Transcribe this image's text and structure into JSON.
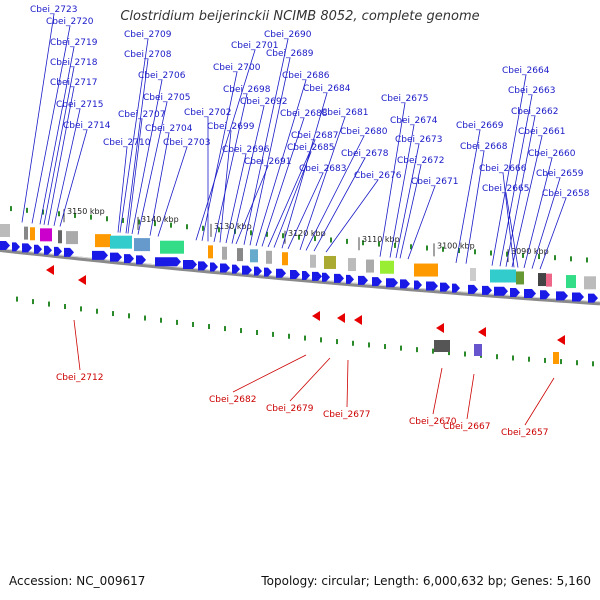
{
  "title": "Clostridium beijerinckii NCIMB 8052, complete genome",
  "footer": {
    "accession": "Accession: NC_009617",
    "topology": "Topology: circular; Length: 6,000,632 bp; Genes: 5,160"
  },
  "colors": {
    "forward_label": "#1a1ac8",
    "reverse_label": "#cc0000",
    "forward_arrow": "#1a1ae6",
    "reverse_arrow": "#e60000",
    "backbone": "#8a8a8a",
    "tick": "#2a8a2a"
  },
  "kbp_labels": [
    "3150 kbp",
    "3140 kbp",
    "3130 kbp",
    "3120 kbp",
    "3110 kbp",
    "3100 kbp",
    "3090 kbp"
  ],
  "forward_genes": [
    "Cbei_2723",
    "Cbei_2720",
    "Cbei_2719",
    "Cbei_2718",
    "Cbei_2717",
    "Cbei_2715",
    "Cbei_2714",
    "Cbei_2709",
    "Cbei_2708",
    "Cbei_2706",
    "Cbei_2705",
    "Cbei_2707",
    "Cbei_2704",
    "Cbei_2710",
    "Cbei_2703",
    "Cbei_2701",
    "Cbei_2700",
    "Cbei_2702",
    "Cbei_2698",
    "Cbei_2699",
    "Cbei_2696",
    "Cbei_2692",
    "Cbei_2691",
    "Cbei_2690",
    "Cbei_2689",
    "Cbei_2686",
    "Cbei_2688",
    "Cbei_2687",
    "Cbei_2685",
    "Cbei_2684",
    "Cbei_2683",
    "Cbei_2681",
    "Cbei_2680",
    "Cbei_2678",
    "Cbei_2676",
    "Cbei_2675",
    "Cbei_2674",
    "Cbei_2673",
    "Cbei_2672",
    "Cbei_2671",
    "Cbei_2669",
    "Cbei_2668",
    "Cbei_2664",
    "Cbei_2663",
    "Cbei_2662",
    "Cbei_2661",
    "Cbei_2666",
    "Cbei_2665",
    "Cbei_2660",
    "Cbei_2659",
    "Cbei_2658"
  ],
  "reverse_genes": [
    "Cbei_2712",
    "Cbei_2682",
    "Cbei_2679",
    "Cbei_2677",
    "Cbei_2670",
    "Cbei_2667",
    "Cbei_2657"
  ]
}
